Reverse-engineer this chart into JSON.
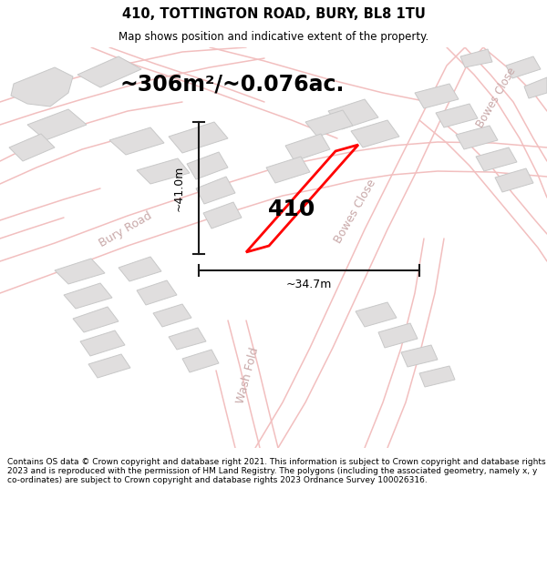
{
  "title": "410, TOTTINGTON ROAD, BURY, BL8 1TU",
  "subtitle": "Map shows position and indicative extent of the property.",
  "area_text": "~306m²/~0.076ac.",
  "property_number": "410",
  "dim_width": "~34.7m",
  "dim_height": "~41.0m",
  "footer": "Contains OS data © Crown copyright and database right 2021. This information is subject to Crown copyright and database rights 2023 and is reproduced with the permission of HM Land Registry. The polygons (including the associated geometry, namely x, y co-ordinates) are subject to Crown copyright and database rights 2023 Ordnance Survey 100026316.",
  "bg_color": "#ffffff",
  "road_color": "#f2bfbf",
  "building_color": "#e0dede",
  "building_edge": "#c8c8c8",
  "red_plot_color": "#ff0000",
  "road_label_color": "#c8a8a8",
  "dim_line_color": "#1a1a1a",
  "title_fontsize": 10.5,
  "subtitle_fontsize": 8.5,
  "area_fontsize": 17,
  "label_fontsize": 9,
  "footer_fontsize": 6.5,
  "number_fontsize": 18
}
